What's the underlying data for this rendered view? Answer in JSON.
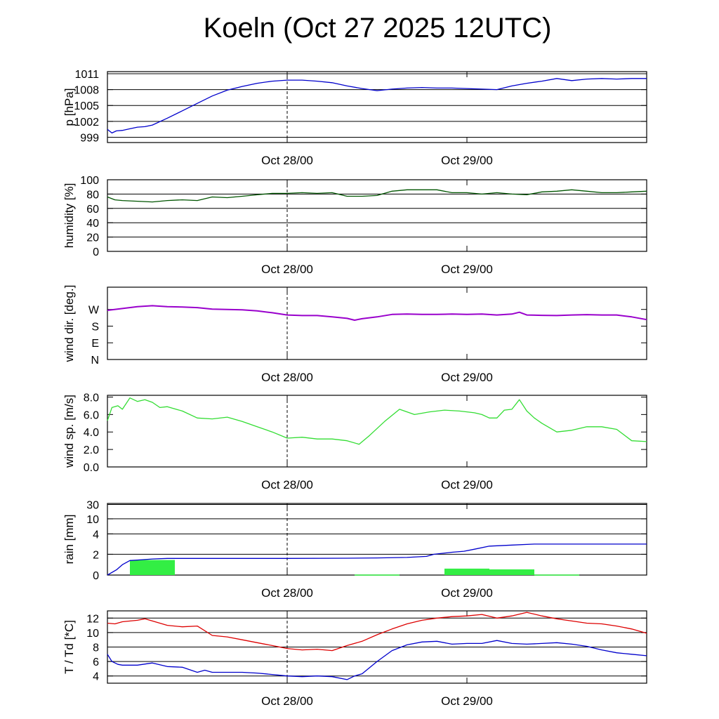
{
  "title": "Koeln (Oct 27 2025 12UTC)",
  "chart_data": [
    {
      "id": "pressure",
      "type": "line",
      "ylabel": "p [hPa]",
      "ylim": [
        998,
        1011.4
      ],
      "yticks": [
        999,
        1002,
        1005,
        1008,
        1011
      ],
      "ytick_labels": [
        "999",
        "1002",
        "1005",
        "1008",
        "1011"
      ],
      "gridlines": [
        999,
        1002,
        1005,
        1008,
        1011
      ],
      "xlim_hours": [
        0,
        36
      ],
      "x_ticks_hours": [
        12,
        24
      ],
      "x_tick_labels": [
        "Oct 28/00",
        "Oct 29/00"
      ],
      "series": [
        {
          "name": "pressure",
          "color": "#0000cc",
          "x": [
            0,
            0.3,
            0.6,
            1,
            1.5,
            2,
            2.5,
            3,
            4,
            5,
            6,
            7,
            8,
            9,
            10,
            11,
            12,
            13,
            14,
            15,
            16,
            17,
            18,
            19,
            20,
            21,
            22,
            23,
            24,
            25,
            26,
            27,
            28,
            29,
            30,
            31,
            32,
            33,
            34,
            35,
            36
          ],
          "values": [
            1000.5,
            999.8,
            1000.2,
            1000.3,
            1000.6,
            1000.9,
            1001.0,
            1001.3,
            1002.6,
            1004.0,
            1005.4,
            1006.8,
            1007.9,
            1008.6,
            1009.2,
            1009.6,
            1009.8,
            1009.8,
            1009.6,
            1009.3,
            1008.7,
            1008.2,
            1007.8,
            1008.1,
            1008.3,
            1008.4,
            1008.3,
            1008.3,
            1008.2,
            1008.1,
            1008.0,
            1008.7,
            1009.2,
            1009.6,
            1010.1,
            1009.7,
            1010.0,
            1010.1,
            1010.0,
            1010.1,
            1010.1
          ]
        }
      ]
    },
    {
      "id": "humidity",
      "type": "line",
      "ylabel": "humidity [%]",
      "ylim": [
        0,
        100
      ],
      "yticks": [
        0,
        20,
        40,
        60,
        80,
        100
      ],
      "ytick_labels": [
        "0",
        "20",
        "40",
        "60",
        "80",
        "100"
      ],
      "gridlines": [
        80,
        60,
        40,
        20
      ],
      "xlim_hours": [
        0,
        36
      ],
      "x_ticks_hours": [
        12,
        24
      ],
      "x_tick_labels": [
        "Oct 28/00",
        "Oct 29/00"
      ],
      "series": [
        {
          "name": "humidity",
          "color": "#005500",
          "x": [
            0,
            0.5,
            1,
            2,
            3,
            4,
            5,
            6,
            7,
            8,
            9,
            10,
            11,
            12,
            13,
            14,
            15,
            16,
            17,
            18,
            19,
            20,
            21,
            22,
            23,
            24,
            25,
            26,
            27,
            28,
            29,
            30,
            31,
            32,
            33,
            34,
            35,
            36
          ],
          "values": [
            76,
            72,
            71,
            70,
            69,
            71,
            72,
            71,
            76,
            75,
            77,
            79,
            81,
            81,
            82,
            81,
            82,
            77,
            77,
            78,
            84,
            86,
            86,
            86,
            82,
            82,
            80,
            82,
            80,
            79,
            83,
            84,
            86,
            84,
            82,
            82,
            83,
            84
          ]
        }
      ]
    },
    {
      "id": "wind-direction",
      "type": "line",
      "ylabel": "wind dir. [deg.]",
      "ylim": [
        0,
        390
      ],
      "yticks": [
        0,
        90,
        180,
        270
      ],
      "ytick_labels": [
        "N",
        "E",
        "S",
        "W"
      ],
      "gridlines": [],
      "xlim_hours": [
        0,
        36
      ],
      "x_ticks_hours": [
        12,
        24
      ],
      "x_tick_labels": [
        "Oct 28/00",
        "Oct 29/00"
      ],
      "series": [
        {
          "name": "wind direction",
          "color": "#9900cc",
          "x": [
            0,
            1,
            2,
            3,
            4,
            5,
            6,
            7,
            8,
            9,
            10,
            11,
            12,
            13,
            14,
            15,
            16,
            16.5,
            17,
            18,
            19,
            20,
            21,
            22,
            23,
            24,
            25,
            26,
            27,
            27.5,
            28,
            29,
            30,
            31,
            32,
            33,
            34,
            35,
            36
          ],
          "values": [
            265,
            275,
            285,
            290,
            285,
            283,
            280,
            272,
            270,
            268,
            262,
            252,
            240,
            237,
            237,
            230,
            222,
            212,
            220,
            230,
            243,
            245,
            243,
            243,
            245,
            243,
            245,
            240,
            245,
            255,
            240,
            238,
            237,
            240,
            242,
            240,
            240,
            230,
            215
          ]
        }
      ]
    },
    {
      "id": "wind-speed",
      "type": "line",
      "ylabel": "wind sp. [m/s]",
      "ylim": [
        0,
        8.2
      ],
      "yticks": [
        0,
        2,
        4,
        6,
        8
      ],
      "ytick_labels": [
        "0.0",
        "2.0",
        "4.0",
        "6.0",
        "8.0"
      ],
      "gridlines": [],
      "xlim_hours": [
        0,
        36
      ],
      "x_ticks_hours": [
        12,
        24
      ],
      "x_tick_labels": [
        "Oct 28/00",
        "Oct 29/00"
      ],
      "series": [
        {
          "name": "wind speed",
          "color": "#33dd33",
          "x": [
            0,
            0.3,
            0.7,
            1,
            1.5,
            2,
            2.5,
            3,
            3.5,
            4,
            5,
            6,
            7,
            8,
            9,
            10,
            11,
            12,
            13,
            14,
            15,
            16,
            16.8,
            17.5,
            18.5,
            19.5,
            20.5,
            21.5,
            22.5,
            23.5,
            24.5,
            25,
            25.5,
            26,
            26.5,
            27,
            27.5,
            28,
            28.5,
            29,
            30,
            31,
            32,
            33,
            34,
            35,
            36
          ],
          "values": [
            5.3,
            6.8,
            7.0,
            6.6,
            7.9,
            7.5,
            7.7,
            7.4,
            6.8,
            6.9,
            6.4,
            5.6,
            5.5,
            5.7,
            5.2,
            4.6,
            4.0,
            3.3,
            3.4,
            3.2,
            3.2,
            3.0,
            2.6,
            3.6,
            5.2,
            6.6,
            6.0,
            6.3,
            6.5,
            6.4,
            6.2,
            6.0,
            5.6,
            5.6,
            6.5,
            6.6,
            7.7,
            6.4,
            5.6,
            5.0,
            4.0,
            4.2,
            4.6,
            4.6,
            4.3,
            3.0,
            2.9
          ]
        }
      ]
    },
    {
      "id": "rain",
      "type": "bar",
      "ylabel": "rain [mm]",
      "ylim": [
        0,
        30
      ],
      "yticks": [
        0,
        2,
        4,
        10,
        30
      ],
      "ytick_labels": [
        "0",
        "2",
        "4",
        "10",
        "30"
      ],
      "gridlines": [
        2,
        4,
        10,
        30
      ],
      "xlim_hours": [
        0,
        36
      ],
      "x_ticks_hours": [
        12,
        24
      ],
      "x_tick_labels": [
        "Oct 28/00",
        "Oct 29/00"
      ],
      "bars": {
        "name": "hourly rain (6h blocks)",
        "color": "#33ee44",
        "x_start": [
          1.5,
          3.0,
          16.5,
          22.5,
          25.5,
          28.5
        ],
        "x_end": [
          3.0,
          4.5,
          19.5,
          25.5,
          28.5,
          31.5
        ],
        "values": [
          1.45,
          1.45,
          0.05,
          0.62,
          0.55,
          0.05
        ]
      },
      "series": [
        {
          "name": "accumulated rain",
          "color": "#0000cc",
          "x": [
            0,
            0.6,
            1,
            1.5,
            2,
            3,
            4,
            5,
            8,
            12,
            16,
            18,
            20,
            21.3,
            21.8,
            23,
            23.8,
            24.5,
            25.5,
            27,
            28.5,
            30,
            32,
            36
          ],
          "values": [
            0,
            0.5,
            1.0,
            1.4,
            1.45,
            1.55,
            1.6,
            1.6,
            1.6,
            1.6,
            1.62,
            1.65,
            1.7,
            1.8,
            2.0,
            2.2,
            2.3,
            2.5,
            2.8,
            2.9,
            3.0,
            3.0,
            3.0,
            3.0
          ]
        }
      ]
    },
    {
      "id": "temperature",
      "type": "line",
      "ylabel": "T / Td [*C]",
      "ylim": [
        3,
        13
      ],
      "yticks": [
        4,
        6,
        8,
        10,
        12
      ],
      "ytick_labels": [
        "4",
        "6",
        "8",
        "10",
        "12"
      ],
      "gridlines": [
        4,
        6,
        8,
        10,
        12
      ],
      "xlim_hours": [
        0,
        36
      ],
      "x_ticks_hours": [
        12,
        24
      ],
      "x_tick_labels": [
        "Oct 28/00",
        "Oct 29/00"
      ],
      "series": [
        {
          "name": "T",
          "color": "#dd0000",
          "x": [
            0,
            0.5,
            1,
            2,
            2.5,
            3,
            4,
            5,
            6,
            7,
            8,
            9,
            10,
            11,
            12,
            13,
            14,
            15,
            16,
            17,
            18,
            19,
            20,
            21,
            22,
            23,
            24,
            25,
            26,
            27,
            28,
            29,
            30,
            31,
            32,
            33,
            34,
            35,
            36
          ],
          "values": [
            11.3,
            11.2,
            11.5,
            11.7,
            11.9,
            11.6,
            11.0,
            10.8,
            10.9,
            9.6,
            9.4,
            9.0,
            8.6,
            8.2,
            7.8,
            7.6,
            7.7,
            7.5,
            8.2,
            8.8,
            9.7,
            10.5,
            11.2,
            11.7,
            12.0,
            12.2,
            12.3,
            12.5,
            12.0,
            12.3,
            12.8,
            12.3,
            11.9,
            11.6,
            11.3,
            11.2,
            10.9,
            10.5,
            9.9
          ]
        }
      ]
    },
    {
      "id": "dewpoint",
      "type": "line",
      "panel": "temperature",
      "series": [
        {
          "name": "Td",
          "color": "#0000cc",
          "x": [
            0,
            0.3,
            0.7,
            1,
            2,
            3,
            4,
            5,
            6,
            6.5,
            7,
            8,
            9,
            10,
            11,
            12,
            13,
            14,
            15,
            16,
            16.5,
            17,
            18,
            19,
            20,
            21,
            22,
            23,
            24,
            25,
            26,
            27,
            28,
            29,
            30,
            31,
            32,
            33,
            34,
            35,
            36
          ],
          "values": [
            7.0,
            6.0,
            5.6,
            5.5,
            5.5,
            5.8,
            5.3,
            5.2,
            4.5,
            4.8,
            4.5,
            4.5,
            4.5,
            4.4,
            4.2,
            4.0,
            3.9,
            4.0,
            3.9,
            3.5,
            4.0,
            4.3,
            6.0,
            7.5,
            8.3,
            8.7,
            8.8,
            8.4,
            8.5,
            8.5,
            8.9,
            8.5,
            8.4,
            8.5,
            8.6,
            8.4,
            8.1,
            7.6,
            7.2,
            7.0,
            6.8
          ]
        }
      ]
    }
  ]
}
